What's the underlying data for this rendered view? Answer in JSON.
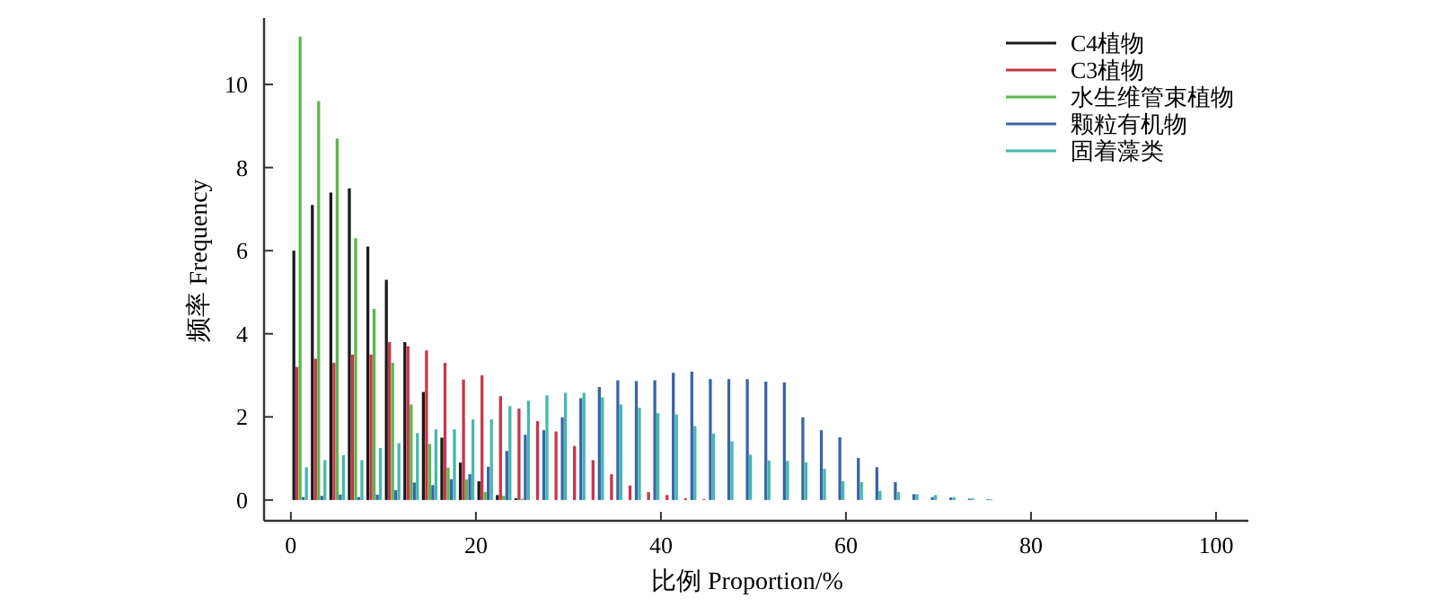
{
  "chart_data": {
    "type": "bar",
    "xlabel": "比例 Proportion/%",
    "ylabel": "频率 Frequency",
    "x": [
      1,
      3,
      5,
      7,
      9,
      11,
      13,
      15,
      17,
      19,
      21,
      23,
      25,
      27,
      29,
      31,
      33,
      35,
      37,
      39,
      41,
      43,
      45,
      47,
      49,
      51,
      53,
      55,
      57,
      59,
      61,
      63,
      65,
      67,
      69,
      71,
      73,
      75,
      77
    ],
    "series": [
      {
        "name": "C4植物",
        "color": "#1a1a1a",
        "values": [
          6.0,
          7.1,
          7.4,
          7.5,
          6.1,
          5.3,
          3.8,
          2.6,
          1.5,
          0.9,
          0.45,
          0.12,
          0.04,
          null,
          0,
          0,
          0,
          0,
          0,
          0,
          0,
          0,
          0,
          0,
          0,
          0,
          0,
          0,
          0,
          0,
          0,
          0,
          0,
          0,
          0,
          0,
          0,
          0,
          0
        ]
      },
      {
        "name": "C3植物",
        "color": "#c8364a",
        "values": [
          3.2,
          3.4,
          3.3,
          3.5,
          3.5,
          3.8,
          3.7,
          3.6,
          3.3,
          2.9,
          3.0,
          2.5,
          2.2,
          1.9,
          1.65,
          1.3,
          0.96,
          0.62,
          0.35,
          0.19,
          0.12,
          0.04,
          0.02,
          0,
          0,
          0,
          0,
          0,
          0,
          0,
          0,
          0,
          0,
          0,
          0,
          0,
          0,
          0,
          0
        ]
      },
      {
        "name": "水生维管束植物",
        "color": "#5cb84a",
        "values": [
          11.15,
          9.6,
          8.7,
          6.3,
          4.6,
          3.3,
          2.3,
          1.35,
          0.78,
          0.5,
          0.19,
          0.1,
          0.03,
          0,
          0,
          0,
          0,
          0,
          0,
          0,
          0,
          0,
          0,
          0,
          0,
          0,
          0,
          0,
          0,
          0,
          0,
          0,
          0,
          0,
          0,
          0,
          0,
          0,
          0
        ]
      },
      {
        "name": "颗粒有机物",
        "color": "#3a64a8",
        "values": [
          0.07,
          0.1,
          0.13,
          0.07,
          0.13,
          0.24,
          0.42,
          0.36,
          0.5,
          0.62,
          0.8,
          1.18,
          1.57,
          1.68,
          1.99,
          2.45,
          2.72,
          2.88,
          2.86,
          2.88,
          3.06,
          3.09,
          2.91,
          2.91,
          2.91,
          2.85,
          2.83,
          1.99,
          1.68,
          1.51,
          1.01,
          0.79,
          0.43,
          0.14,
          0.07,
          0.06,
          0.03,
          0.02,
          null
        ]
      },
      {
        "name": "固着藻类",
        "color": "#45b8b0",
        "values": [
          0.79,
          0.96,
          1.08,
          0.96,
          1.25,
          1.37,
          1.61,
          1.7,
          1.7,
          1.94,
          1.94,
          2.26,
          2.39,
          2.52,
          2.58,
          2.58,
          2.47,
          2.3,
          2.22,
          2.09,
          2.06,
          1.78,
          1.6,
          1.41,
          1.09,
          0.95,
          0.94,
          0.91,
          0.75,
          0.45,
          0.43,
          0.22,
          0.19,
          0.14,
          0.12,
          0.07,
          0.04,
          0.02,
          null
        ]
      }
    ],
    "xlim": [
      -2.9,
      103.5
    ],
    "ylim": [
      -0.5,
      11.6
    ],
    "xticks": [
      0,
      20,
      40,
      60,
      80,
      100
    ],
    "yticks": [
      0,
      2,
      4,
      6,
      8,
      10
    ],
    "legend": "top right"
  }
}
